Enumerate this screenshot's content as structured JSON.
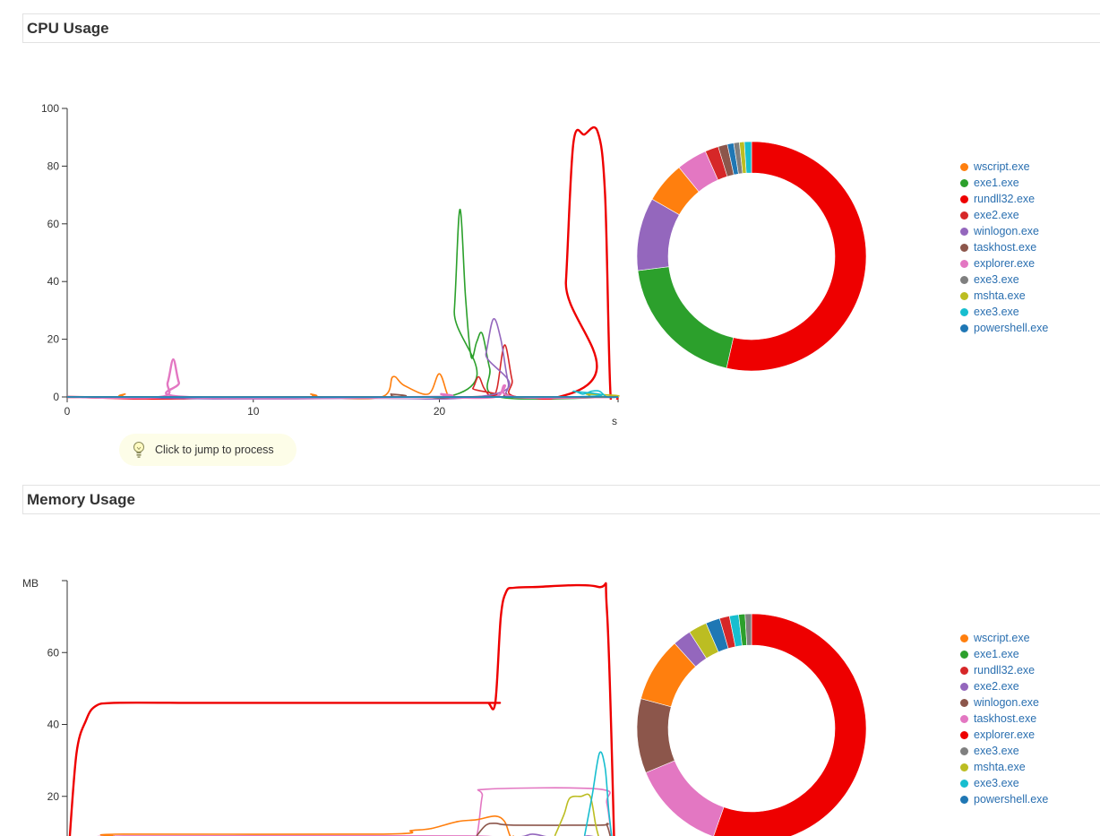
{
  "cpu": {
    "title": "CPU Usage",
    "tip": "Click to jump to process",
    "legend": [
      {
        "name": "wscript.exe",
        "color": "#ff7f0e"
      },
      {
        "name": "exe1.exe",
        "color": "#2ca02c"
      },
      {
        "name": "rundll32.exe",
        "color": "#ee0000"
      },
      {
        "name": "exe2.exe",
        "color": "#d62728"
      },
      {
        "name": "winlogon.exe",
        "color": "#9467bd"
      },
      {
        "name": "taskhost.exe",
        "color": "#8c564b"
      },
      {
        "name": "explorer.exe",
        "color": "#e377c2"
      },
      {
        "name": "exe3.exe",
        "color": "#7f7f7f"
      },
      {
        "name": "mshta.exe",
        "color": "#bcbd22"
      },
      {
        "name": "exe3.exe",
        "color": "#17becf"
      },
      {
        "name": "powershell.exe",
        "color": "#1f77b4"
      }
    ]
  },
  "memory": {
    "title": "Memory Usage",
    "legend": [
      {
        "name": "wscript.exe",
        "color": "#ff7f0e"
      },
      {
        "name": "exe1.exe",
        "color": "#2ca02c"
      },
      {
        "name": "rundll32.exe",
        "color": "#d62728"
      },
      {
        "name": "exe2.exe",
        "color": "#9467bd"
      },
      {
        "name": "winlogon.exe",
        "color": "#8c564b"
      },
      {
        "name": "taskhost.exe",
        "color": "#e377c2"
      },
      {
        "name": "explorer.exe",
        "color": "#ee0000"
      },
      {
        "name": "exe3.exe",
        "color": "#7f7f7f"
      },
      {
        "name": "mshta.exe",
        "color": "#bcbd22"
      },
      {
        "name": "exe3.exe",
        "color": "#17becf"
      },
      {
        "name": "powershell.exe",
        "color": "#1f77b4"
      }
    ]
  },
  "chart_data": [
    {
      "type": "line",
      "title": "CPU Usage",
      "xlabel": "s",
      "ylabel": "",
      "xlim": [
        0,
        29.6
      ],
      "ylim": [
        0,
        100
      ],
      "xticks": [
        0,
        10,
        20
      ],
      "yticks": [
        0,
        20,
        40,
        60,
        80,
        100
      ],
      "series": [
        {
          "name": "wscript.exe",
          "color": "#ff7f0e",
          "x": [
            0,
            2.6,
            3.1,
            3.6,
            12.6,
            13.1,
            13.6,
            16.9,
            17.5,
            18.1,
            19.4,
            20.0,
            20.5,
            21.0,
            29.6
          ],
          "y": [
            0,
            0,
            1,
            0,
            0,
            1,
            0,
            0,
            7,
            4,
            1,
            8,
            0,
            0,
            0
          ]
        },
        {
          "name": "exe1.exe",
          "color": "#2ca02c",
          "x": [
            0,
            20.4,
            20.8,
            21.1,
            21.4,
            21.7,
            22.0,
            22.3,
            22.7,
            23.2,
            29.6
          ],
          "y": [
            0,
            0,
            30,
            65,
            35,
            14,
            19,
            22,
            10,
            0,
            0
          ]
        },
        {
          "name": "rundll32.exe",
          "color": "#ee0000",
          "x": [
            0,
            26.4,
            26.8,
            27.2,
            27.8,
            28.5,
            28.9,
            29.2,
            29.6
          ],
          "y": [
            0,
            0,
            40,
            88,
            91,
            92,
            70,
            0,
            0
          ]
        },
        {
          "name": "exe2.exe",
          "color": "#d62728",
          "x": [
            0,
            21.4,
            21.8,
            22.1,
            22.4,
            22.8,
            23.1,
            23.5,
            23.9,
            24.2,
            29.6
          ],
          "y": [
            0,
            0,
            3,
            7,
            3,
            0,
            3,
            18,
            6,
            0,
            0
          ]
        },
        {
          "name": "winlogon.exe",
          "color": "#9467bd",
          "x": [
            0,
            22.0,
            22.5,
            22.9,
            23.3,
            23.7,
            24.1,
            29.6
          ],
          "y": [
            0,
            0,
            15,
            27,
            20,
            5,
            0,
            0
          ]
        },
        {
          "name": "taskhost.exe",
          "color": "#8c564b",
          "x": [
            0,
            16.8,
            17.4,
            18.0,
            23.2,
            23.6,
            24.0,
            29.6
          ],
          "y": [
            0,
            0,
            1,
            0,
            0,
            1,
            0,
            0
          ]
        },
        {
          "name": "explorer.exe",
          "color": "#e377c2",
          "x": [
            0,
            5.0,
            5.4,
            5.7,
            6.0,
            6.4,
            19.6,
            20.1,
            20.6,
            23.0,
            23.5,
            24.0,
            29.6
          ],
          "y": [
            0,
            0,
            5,
            13,
            5,
            0,
            0,
            1,
            0,
            0,
            4,
            0,
            0
          ]
        },
        {
          "name": "exe3.exe",
          "color": "#7f7f7f",
          "x": [
            0,
            29.6
          ],
          "y": [
            0,
            0
          ]
        },
        {
          "name": "mshta.exe",
          "color": "#bcbd22",
          "x": [
            0,
            27.5,
            27.9,
            28.3,
            29.6
          ],
          "y": [
            0,
            0,
            1,
            0,
            0
          ]
        },
        {
          "name": "exe3.exe",
          "color": "#17becf",
          "x": [
            0,
            26.6,
            27.2,
            27.7,
            28.2,
            28.6,
            29.0,
            29.6
          ],
          "y": [
            0,
            0,
            2,
            1,
            2,
            2,
            0,
            0
          ]
        },
        {
          "name": "powershell.exe",
          "color": "#1f77b4",
          "x": [
            0,
            29.6
          ],
          "y": [
            0,
            0
          ]
        }
      ]
    },
    {
      "type": "pie",
      "title": "CPU Usage",
      "categories": [
        "rundll32.exe",
        "exe1.exe",
        "winlogon.exe",
        "wscript.exe",
        "explorer.exe",
        "exe2.exe",
        "taskhost.exe",
        "powershell.exe",
        "exe3.exe",
        "mshta.exe",
        "exe3.exe"
      ],
      "values": [
        53.5,
        19.5,
        10.3,
        5.8,
        4.3,
        1.9,
        1.3,
        0.9,
        0.8,
        0.7,
        1.0
      ],
      "colors": [
        "#ee0000",
        "#2ca02c",
        "#9467bd",
        "#ff7f0e",
        "#e377c2",
        "#d62728",
        "#8c564b",
        "#1f77b4",
        "#7f7f7f",
        "#bcbd22",
        "#17becf"
      ]
    },
    {
      "type": "line",
      "title": "Memory Usage",
      "xlabel": "",
      "ylabel": "MB",
      "xlim": [
        0,
        29.6
      ],
      "ylim": [
        0,
        80
      ],
      "yticks": [
        20,
        40,
        60
      ],
      "series": [
        {
          "name": "explorer.exe",
          "color": "#ee0000",
          "x": [
            0.1,
            0.5,
            1.0,
            1.5,
            2.5,
            6.5,
            7.5,
            22.0,
            22.6,
            23.0,
            23.3,
            23.6,
            24.0,
            25.0,
            28.5,
            29.0,
            29.4
          ],
          "y": [
            6,
            32,
            41,
            45,
            46,
            46,
            46,
            46,
            46,
            46,
            70,
            77,
            78,
            78.2,
            78.3,
            72,
            6
          ]
        },
        {
          "name": "taskhost.exe",
          "color": "#e377c2",
          "x": [
            2.5,
            3.0,
            21.5,
            22.0,
            22.3,
            22.6,
            28.6,
            29.0,
            29.3
          ],
          "y": [
            8,
            9,
            9,
            9,
            20,
            22,
            22,
            18,
            6
          ]
        },
        {
          "name": "wscript.exe",
          "color": "#ff7f0e",
          "x": [
            2.5,
            3.0,
            17.0,
            18.5,
            19.5,
            21.0,
            22.0,
            23.0,
            23.5,
            23.8,
            24.0
          ],
          "y": [
            9,
            9.5,
            9.5,
            10.5,
            11,
            13,
            13.5,
            14.5,
            13,
            9,
            9
          ]
        },
        {
          "name": "winlogon.exe",
          "color": "#8c564b",
          "x": [
            22.0,
            22.5,
            23.0,
            24.0,
            28.6,
            29.0,
            29.3
          ],
          "y": [
            9,
            12,
            12.5,
            12,
            12,
            12,
            6
          ]
        },
        {
          "name": "mshta.exe",
          "color": "#bcbd22",
          "x": [
            26.2,
            26.7,
            27.0,
            27.6,
            28.1,
            28.4,
            28.6
          ],
          "y": [
            9,
            15,
            19.5,
            20,
            20,
            12,
            8
          ]
        },
        {
          "name": "exe3.exe",
          "color": "#17becf",
          "x": [
            27.8,
            28.2,
            28.6,
            28.9,
            29.1,
            29.3
          ],
          "y": [
            9,
            20,
            32,
            28,
            16,
            7
          ]
        },
        {
          "name": "exe2.exe",
          "color": "#9467bd",
          "x": [
            2.5,
            3.0,
            20.0,
            24.0,
            25.0,
            26.0,
            27.5,
            28.0,
            28.6
          ],
          "y": [
            8.2,
            8.6,
            8.6,
            8.6,
            9.5,
            8.6,
            8.6,
            9,
            8.4
          ]
        }
      ]
    },
    {
      "type": "pie",
      "title": "Memory Usage",
      "categories": [
        "explorer.exe",
        "taskhost.exe",
        "winlogon.exe",
        "wscript.exe",
        "exe2.exe",
        "mshta.exe",
        "powershell.exe",
        "rundll32.exe",
        "exe3.exe",
        "exe1.exe",
        "exe3.exe"
      ],
      "values": [
        55.4,
        13.3,
        10.5,
        9.1,
        2.6,
        2.6,
        2.0,
        1.4,
        1.3,
        0.9,
        0.9
      ],
      "colors": [
        "#ee0000",
        "#e377c2",
        "#8c564b",
        "#ff7f0e",
        "#9467bd",
        "#bcbd22",
        "#1f77b4",
        "#d62728",
        "#17becf",
        "#2ca02c",
        "#7f7f7f"
      ]
    }
  ]
}
